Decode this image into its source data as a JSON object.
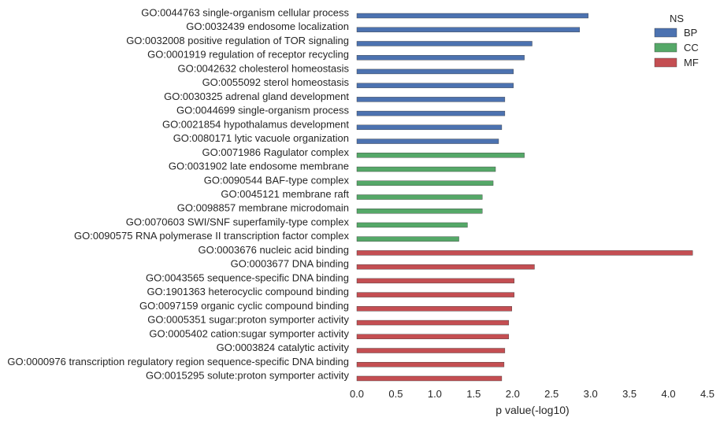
{
  "chart_data": {
    "type": "bar",
    "orientation": "horizontal",
    "xlabel": "p value(-log10)",
    "xlim": [
      0,
      4.5
    ],
    "xticks": [
      0.0,
      0.5,
      1.0,
      1.5,
      2.0,
      2.5,
      3.0,
      3.5,
      4.0,
      4.5
    ],
    "xtick_labels": [
      "0.0",
      "0.5",
      "1.0",
      "1.5",
      "2.0",
      "2.5",
      "3.0",
      "3.5",
      "4.0",
      "4.5"
    ],
    "grid": false,
    "legend": {
      "title": "NS",
      "placement": "top-right",
      "entries": [
        {
          "name": "BP",
          "color": "#4c72b0"
        },
        {
          "name": "CC",
          "color": "#55a868"
        },
        {
          "name": "MF",
          "color": "#c44e52"
        }
      ]
    },
    "categories": [
      "GO:0044763 single-organism cellular process",
      "GO:0032439 endosome localization",
      "GO:0032008 positive regulation of TOR signaling",
      "GO:0001919 regulation of receptor recycling",
      "GO:0042632 cholesterol homeostasis",
      "GO:0055092 sterol homeostasis",
      "GO:0030325 adrenal gland development",
      "GO:0044699 single-organism process",
      "GO:0021854 hypothalamus development",
      "GO:0080171 lytic vacuole organization",
      "GO:0071986 Ragulator complex",
      "GO:0031902 late endosome membrane",
      "GO:0090544 BAF-type complex",
      "GO:0045121 membrane raft",
      "GO:0098857 membrane microdomain",
      "GO:0070603 SWI/SNF superfamily-type complex",
      "GO:0090575 RNA polymerase II transcription factor complex",
      "GO:0003676 nucleic acid binding",
      "GO:0003677 DNA binding",
      "GO:0043565 sequence-specific DNA binding",
      "GO:1901363 heterocyclic compound binding",
      "GO:0097159 organic cyclic compound binding",
      "GO:0005351 sugar:proton symporter activity",
      "GO:0005402 cation:sugar symporter activity",
      "GO:0003824 catalytic activity",
      "GO:0000976 transcription regulatory region sequence-specific DNA binding",
      "GO:0015295 solute:proton symporter activity"
    ],
    "series": [
      {
        "name": "BP",
        "color": "#4c72b0",
        "values": [
          2.97,
          2.86,
          2.25,
          2.15,
          2.01,
          2.01,
          1.9,
          1.9,
          1.86,
          1.82,
          null,
          null,
          null,
          null,
          null,
          null,
          null,
          null,
          null,
          null,
          null,
          null,
          null,
          null,
          null,
          null,
          null
        ]
      },
      {
        "name": "CC",
        "color": "#55a868",
        "values": [
          null,
          null,
          null,
          null,
          null,
          null,
          null,
          null,
          null,
          null,
          2.15,
          1.78,
          1.75,
          1.61,
          1.61,
          1.42,
          1.31,
          null,
          null,
          null,
          null,
          null,
          null,
          null,
          null,
          null,
          null
        ]
      },
      {
        "name": "MF",
        "color": "#c44e52",
        "values": [
          null,
          null,
          null,
          null,
          null,
          null,
          null,
          null,
          null,
          null,
          null,
          null,
          null,
          null,
          null,
          null,
          null,
          4.31,
          2.28,
          2.02,
          2.02,
          1.99,
          1.95,
          1.95,
          1.9,
          1.89,
          1.86
        ]
      }
    ]
  }
}
